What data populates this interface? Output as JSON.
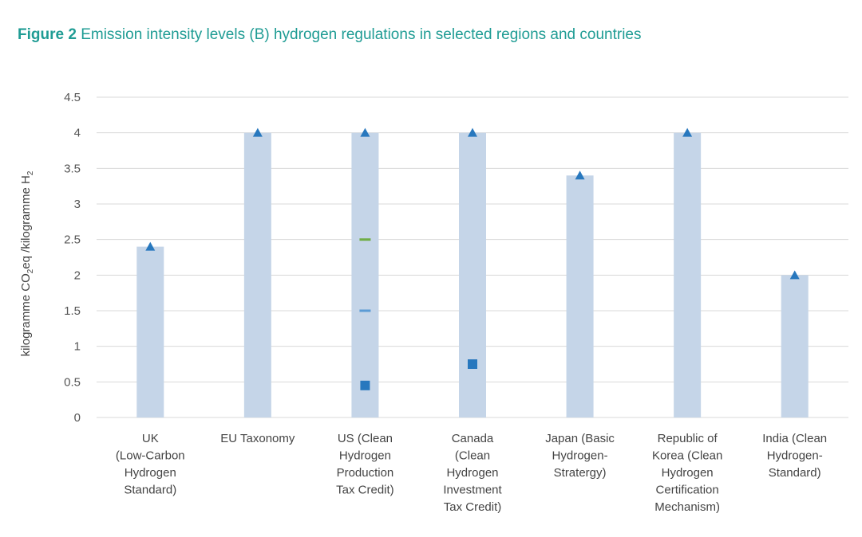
{
  "title": {
    "prefix": "Figure 2",
    "text": "Emission intensity levels (B) hydrogen regulations in selected regions and countries"
  },
  "colors": {
    "title": "#1f9c94",
    "bar": "#c5d5e8",
    "marker_blue": "#2878be",
    "marker_light_blue": "#5b9bd5",
    "marker_green": "#70ad47",
    "grid": "#d9d9d9"
  },
  "chart_data": {
    "type": "bar",
    "ylabel_parts": [
      "kilogramme CO",
      "2",
      "eq /kilogramme H",
      "2"
    ],
    "ylim": [
      0,
      4.5
    ],
    "yticks": [
      "0",
      "0.5",
      "1",
      "1.5",
      "2",
      "2.5",
      "3",
      "3.5",
      "4",
      "4.5"
    ],
    "grid": true,
    "categories": [
      [
        "UK",
        "(Low-Carbon",
        "Hydrogen",
        "Standard)"
      ],
      [
        "EU Taxonomy"
      ],
      [
        "US (Clean",
        "Hydrogen",
        "Production",
        "Tax Credit)"
      ],
      [
        "Canada",
        "(Clean",
        "Hydrogen",
        "Investment",
        "Tax Credit)"
      ],
      [
        "Japan (Basic",
        "Hydrogen-",
        "Stratergy)"
      ],
      [
        "Republic of",
        "Korea (Clean",
        "Hydrogen",
        "Certification",
        "Mechanism)"
      ],
      [
        "India (Clean",
        "Hydrogen-",
        "Standard)"
      ]
    ],
    "values": [
      2.4,
      4.0,
      4.0,
      4.0,
      3.4,
      4.0,
      2.0
    ],
    "markers": [
      {
        "category": 0,
        "value": 2.4,
        "shape": "triangle",
        "color": "#2878be"
      },
      {
        "category": 1,
        "value": 4.0,
        "shape": "triangle",
        "color": "#2878be"
      },
      {
        "category": 2,
        "value": 4.0,
        "shape": "triangle",
        "color": "#2878be"
      },
      {
        "category": 2,
        "value": 2.5,
        "shape": "dash",
        "color": "#70ad47"
      },
      {
        "category": 2,
        "value": 1.5,
        "shape": "dash",
        "color": "#5b9bd5"
      },
      {
        "category": 2,
        "value": 0.45,
        "shape": "square",
        "color": "#2878be"
      },
      {
        "category": 3,
        "value": 4.0,
        "shape": "triangle",
        "color": "#2878be"
      },
      {
        "category": 3,
        "value": 0.75,
        "shape": "square",
        "color": "#2878be"
      },
      {
        "category": 4,
        "value": 3.4,
        "shape": "triangle",
        "color": "#2878be"
      },
      {
        "category": 5,
        "value": 4.0,
        "shape": "triangle",
        "color": "#2878be"
      },
      {
        "category": 6,
        "value": 2.0,
        "shape": "triangle",
        "color": "#2878be"
      }
    ]
  }
}
